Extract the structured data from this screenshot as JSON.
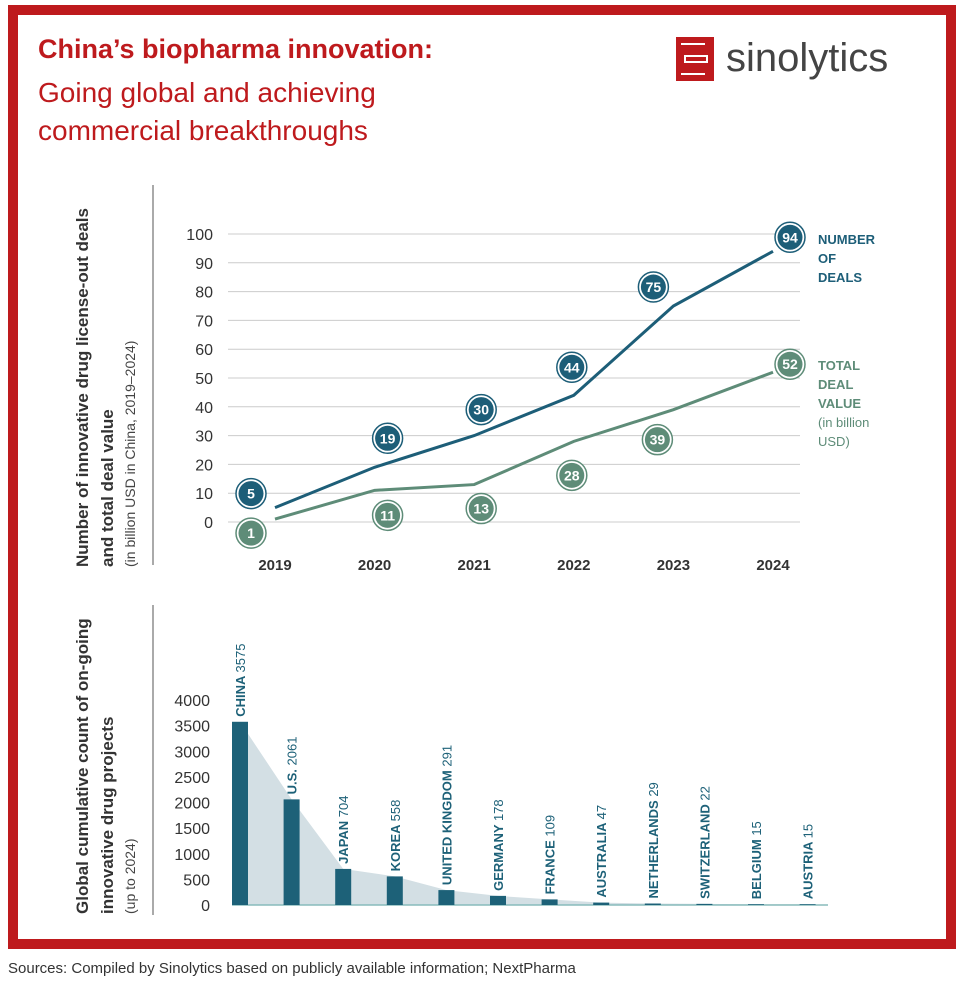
{
  "header": {
    "title_bold": "China’s biopharma innovation:",
    "title_sub": "Going global and achieving commercial breakthroughs",
    "logo_text": "sinolytics"
  },
  "colors": {
    "brand_red": "#be1a1d",
    "deals": "#1d5e78",
    "value": "#5e8c78",
    "bar": "#1d6178",
    "area": "#d3dfe4"
  },
  "chart_data": [
    {
      "type": "line",
      "ylabel": "Number of innovative drug license-out deals and total deal value",
      "ylabel_sub": "(in billion USD in China, 2019–2024)",
      "x": [
        "2019",
        "2020",
        "2021",
        "2022",
        "2023",
        "2024"
      ],
      "yticks": [
        "0",
        "10",
        "20",
        "30",
        "40",
        "50",
        "60",
        "70",
        "80",
        "90",
        "100"
      ],
      "ylim": [
        0,
        100
      ],
      "series": [
        {
          "name": "NUMBER OF DEALS",
          "legend": [
            "NUMBER",
            "OF",
            "DEALS"
          ],
          "values": [
            5,
            19,
            30,
            44,
            75,
            94
          ]
        },
        {
          "name": "TOTAL DEAL VALUE (in billion USD)",
          "legend": [
            "TOTAL",
            "DEAL",
            "VALUE",
            "(in billion",
            "USD)"
          ],
          "values": [
            1,
            11,
            13,
            28,
            39,
            52
          ]
        }
      ]
    },
    {
      "type": "bar",
      "ylabel": "Global cumulative count of on-going innovative drug projects",
      "ylabel_sub": "(up to 2024)",
      "yticks": [
        "0",
        "500",
        "1000",
        "1500",
        "2000",
        "2500",
        "3000",
        "3500",
        "4000"
      ],
      "ylim": [
        0,
        4000
      ],
      "categories": [
        "CHINA",
        "U.S.",
        "JAPAN",
        "KOREA",
        "UNITED KINGDOM",
        "GERMANY",
        "FRANCE",
        "AUSTRALIA",
        "NETHERLANDS",
        "SWITZERLAND",
        "BELGIUM",
        "AUSTRIA"
      ],
      "values": [
        3575,
        2061,
        704,
        558,
        291,
        178,
        109,
        47,
        29,
        22,
        15,
        15
      ]
    }
  ],
  "footer": {
    "source": "Sources: Compiled by Sinolytics based on publicly available information; NextPharma"
  }
}
